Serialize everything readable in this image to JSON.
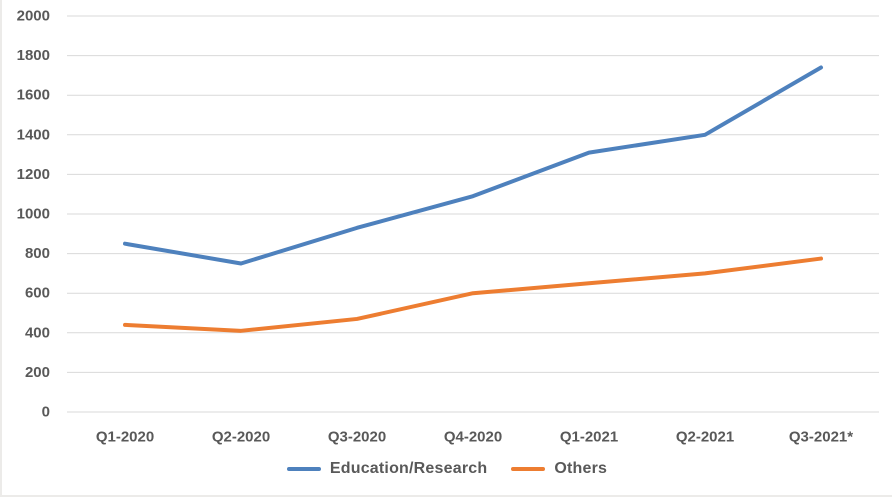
{
  "chart_data": {
    "type": "line",
    "title": "",
    "xlabel": "",
    "ylabel": "",
    "categories": [
      "Q1-2020",
      "Q2-2020",
      "Q3-2020",
      "Q4-2020",
      "Q1-2021",
      "Q2-2021",
      "Q3-2021*"
    ],
    "series": [
      {
        "name": "Education/Research",
        "color": "#4e81bd",
        "values": [
          850,
          750,
          930,
          1090,
          1310,
          1400,
          1740
        ]
      },
      {
        "name": "Others",
        "color": "#ed7d31",
        "values": [
          440,
          410,
          470,
          600,
          650,
          700,
          775
        ]
      }
    ],
    "ylim": [
      0,
      2000
    ],
    "y_tick_step": 200,
    "y_tick_labels": [
      "0",
      "200",
      "400",
      "600",
      "800",
      "1000",
      "1200",
      "1400",
      "1600",
      "1800",
      "2000"
    ],
    "grid": true,
    "legend_position": "bottom",
    "colors": {
      "gridline": "#d9d9d9",
      "tick_label": "#595959",
      "background": "#ffffff"
    }
  }
}
